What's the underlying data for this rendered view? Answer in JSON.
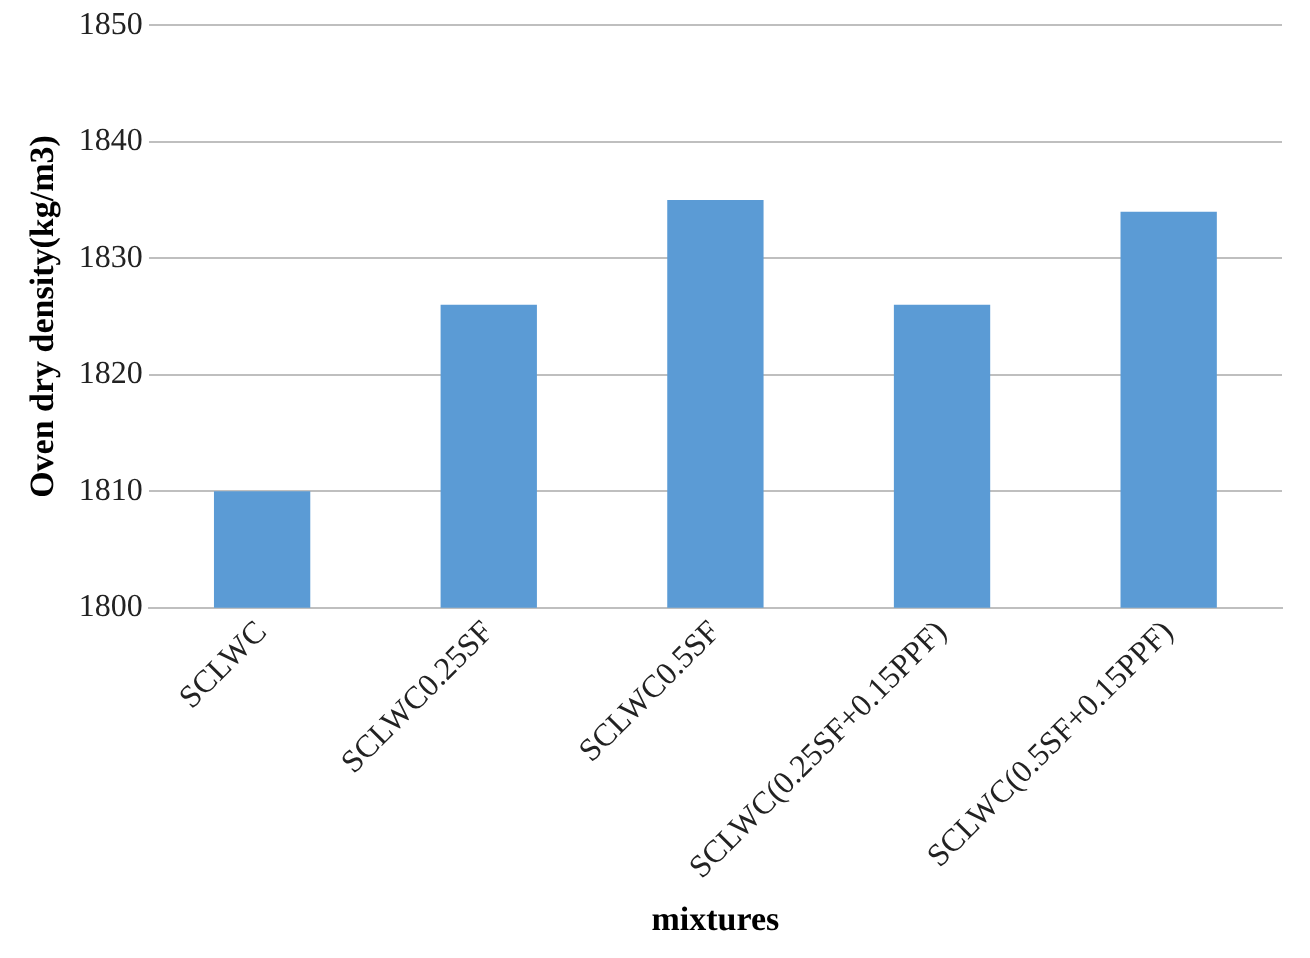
{
  "chart_data": {
    "type": "bar",
    "xlabel": "mixtures",
    "ylabel": "Oven dry density(kg/m3)",
    "categories": [
      "SCLWC",
      "SCLWC0.25SF",
      "SCLWC0.5SF",
      "SCLWC(0.25SF+0.15PPF)",
      "SCLWC(0.5SF+0.15PPF)"
    ],
    "values": [
      1810,
      1826,
      1835,
      1826,
      1834
    ],
    "color": "#5b9bd5",
    "ylim": [
      1800,
      1850
    ],
    "yticks": [
      1800,
      1810,
      1820,
      1830,
      1840,
      1850
    ],
    "grid": "y",
    "legend": false
  }
}
